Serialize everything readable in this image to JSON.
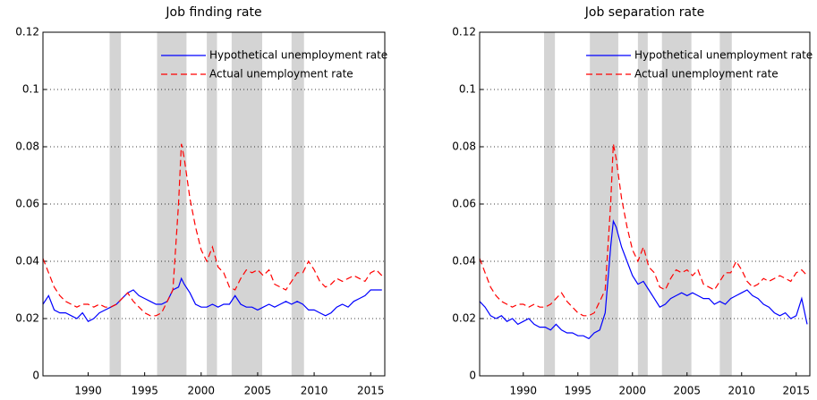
{
  "chart_data": [
    {
      "type": "line",
      "title": "Job finding rate",
      "x": [
        1986,
        1986.5,
        1987,
        1987.5,
        1988,
        1988.5,
        1989,
        1989.5,
        1990,
        1990.5,
        1991,
        1991.5,
        1992,
        1992.5,
        1993,
        1993.5,
        1994,
        1994.5,
        1995,
        1995.5,
        1996,
        1996.5,
        1997,
        1997.5,
        1998,
        1998.25,
        1998.5,
        1999,
        1999.5,
        2000,
        2000.5,
        2001,
        2001.5,
        2002,
        2002.5,
        2003,
        2003.5,
        2004,
        2004.5,
        2005,
        2005.5,
        2006,
        2006.5,
        2007,
        2007.5,
        2008,
        2008.5,
        2009,
        2009.5,
        2010,
        2010.5,
        2011,
        2011.5,
        2012,
        2012.5,
        2013,
        2013.5,
        2014,
        2014.5,
        2015,
        2015.5,
        2016
      ],
      "series": [
        {
          "name": "Hypothetical unemployment rate",
          "color": "#0000ff",
          "linestyle": "solid",
          "values": [
            0.025,
            0.028,
            0.023,
            0.022,
            0.022,
            0.021,
            0.02,
            0.022,
            0.019,
            0.02,
            0.022,
            0.023,
            0.024,
            0.025,
            0.027,
            0.029,
            0.03,
            0.028,
            0.027,
            0.026,
            0.025,
            0.025,
            0.026,
            0.03,
            0.031,
            0.034,
            0.032,
            0.029,
            0.025,
            0.024,
            0.024,
            0.025,
            0.024,
            0.025,
            0.025,
            0.028,
            0.025,
            0.024,
            0.024,
            0.023,
            0.024,
            0.025,
            0.024,
            0.025,
            0.026,
            0.025,
            0.026,
            0.025,
            0.023,
            0.023,
            0.022,
            0.021,
            0.022,
            0.024,
            0.025,
            0.024,
            0.026,
            0.027,
            0.028,
            0.03,
            0.03,
            0.03
          ]
        },
        {
          "name": "Actual unemployment rate",
          "color": "#ff0000",
          "linestyle": "dashed",
          "values": [
            0.041,
            0.036,
            0.031,
            0.028,
            0.026,
            0.025,
            0.024,
            0.025,
            0.025,
            0.024,
            0.025,
            0.024,
            0.024,
            0.025,
            0.027,
            0.029,
            0.026,
            0.024,
            0.022,
            0.021,
            0.021,
            0.022,
            0.026,
            0.03,
            0.06,
            0.081,
            0.076,
            0.062,
            0.052,
            0.044,
            0.04,
            0.045,
            0.038,
            0.036,
            0.031,
            0.03,
            0.034,
            0.037,
            0.036,
            0.037,
            0.035,
            0.037,
            0.032,
            0.031,
            0.03,
            0.033,
            0.036,
            0.036,
            0.04,
            0.037,
            0.033,
            0.031,
            0.032,
            0.034,
            0.033,
            0.034,
            0.035,
            0.034,
            0.033,
            0.036,
            0.037,
            0.035
          ]
        }
      ],
      "shaded_periods": [
        [
          1991.9,
          1992.9
        ],
        [
          1996.1,
          1998.7
        ],
        [
          2000.5,
          2001.4
        ],
        [
          2002.7,
          2005.4
        ],
        [
          2008,
          2009.1
        ]
      ],
      "xlim": [
        1986,
        2016.25
      ],
      "ylim": [
        0,
        0.12
      ],
      "xticks": [
        1990,
        1995,
        2000,
        2005,
        2010,
        2015
      ],
      "yticks": [
        0,
        0.02,
        0.04,
        0.06,
        0.08,
        0.1,
        0.12
      ],
      "grid": true,
      "legend": "upper right"
    },
    {
      "type": "line",
      "title": "Job separation rate",
      "x": [
        1986,
        1986.5,
        1987,
        1987.5,
        1988,
        1988.5,
        1989,
        1989.5,
        1990,
        1990.5,
        1991,
        1991.5,
        1992,
        1992.5,
        1993,
        1993.5,
        1994,
        1994.5,
        1995,
        1995.5,
        1996,
        1996.5,
        1997,
        1997.5,
        1998,
        1998.25,
        1998.5,
        1999,
        1999.5,
        2000,
        2000.5,
        2001,
        2001.5,
        2002,
        2002.5,
        2003,
        2003.5,
        2004,
        2004.5,
        2005,
        2005.5,
        2006,
        2006.5,
        2007,
        2007.5,
        2008,
        2008.5,
        2009,
        2009.5,
        2010,
        2010.5,
        2011,
        2011.5,
        2012,
        2012.5,
        2013,
        2013.5,
        2014,
        2014.5,
        2015,
        2015.5,
        2016
      ],
      "series": [
        {
          "name": "Hypothetical unemployment rate",
          "color": "#0000ff",
          "linestyle": "solid",
          "values": [
            0.026,
            0.024,
            0.021,
            0.02,
            0.021,
            0.019,
            0.02,
            0.018,
            0.019,
            0.02,
            0.018,
            0.017,
            0.017,
            0.016,
            0.018,
            0.016,
            0.015,
            0.015,
            0.014,
            0.014,
            0.013,
            0.015,
            0.016,
            0.022,
            0.045,
            0.054,
            0.052,
            0.045,
            0.04,
            0.035,
            0.032,
            0.033,
            0.03,
            0.027,
            0.024,
            0.025,
            0.027,
            0.028,
            0.029,
            0.028,
            0.029,
            0.028,
            0.027,
            0.027,
            0.025,
            0.026,
            0.025,
            0.027,
            0.028,
            0.029,
            0.03,
            0.028,
            0.027,
            0.025,
            0.024,
            0.022,
            0.021,
            0.022,
            0.02,
            0.021,
            0.027,
            0.018
          ]
        },
        {
          "name": "Actual unemployment rate",
          "color": "#ff0000",
          "linestyle": "dashed",
          "values": [
            0.041,
            0.036,
            0.031,
            0.028,
            0.026,
            0.025,
            0.024,
            0.025,
            0.025,
            0.024,
            0.025,
            0.024,
            0.024,
            0.025,
            0.027,
            0.029,
            0.026,
            0.024,
            0.022,
            0.021,
            0.021,
            0.022,
            0.026,
            0.03,
            0.06,
            0.081,
            0.076,
            0.062,
            0.052,
            0.044,
            0.04,
            0.045,
            0.038,
            0.036,
            0.031,
            0.03,
            0.034,
            0.037,
            0.036,
            0.037,
            0.035,
            0.037,
            0.032,
            0.031,
            0.03,
            0.033,
            0.036,
            0.036,
            0.04,
            0.037,
            0.033,
            0.031,
            0.032,
            0.034,
            0.033,
            0.034,
            0.035,
            0.034,
            0.033,
            0.036,
            0.037,
            0.035
          ]
        }
      ],
      "shaded_periods": [
        [
          1991.9,
          1992.9
        ],
        [
          1996.1,
          1998.7
        ],
        [
          2000.5,
          2001.4
        ],
        [
          2002.7,
          2005.4
        ],
        [
          2008,
          2009.1
        ]
      ],
      "xlim": [
        1986,
        2016.25
      ],
      "ylim": [
        0,
        0.12
      ],
      "xticks": [
        1990,
        1995,
        2000,
        2005,
        2010,
        2015
      ],
      "yticks": [
        0,
        0.02,
        0.04,
        0.06,
        0.08,
        0.1,
        0.12
      ],
      "grid": true,
      "legend": "upper right"
    }
  ]
}
